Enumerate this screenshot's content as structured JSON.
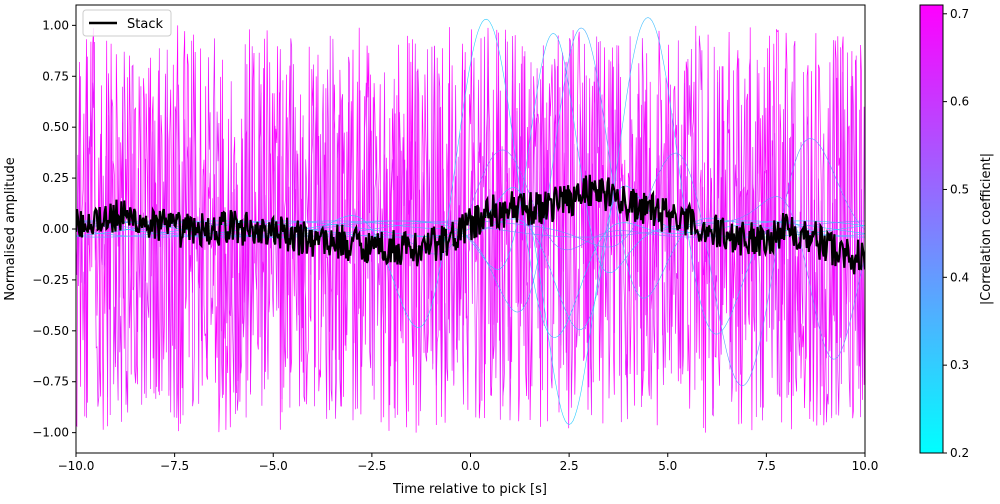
{
  "chart_data": {
    "type": "line",
    "xlabel": "Time relative to pick [s]",
    "ylabel": "Normalised amplitude",
    "xlim": [
      -10,
      10
    ],
    "ylim": [
      -1.1,
      1.1
    ],
    "xticks": [
      -10,
      -7.5,
      -5,
      -2.5,
      0,
      2.5,
      5,
      7.5,
      10
    ],
    "xtick_labels": [
      "−10.0",
      "−7.5",
      "−5.0",
      "−2.5",
      "0.0",
      "2.5",
      "5.0",
      "7.5",
      "10.0"
    ],
    "yticks": [
      -1,
      -0.75,
      -0.5,
      -0.25,
      0,
      0.25,
      0.5,
      0.75,
      1
    ],
    "ytick_labels": [
      "−1.00",
      "−0.75",
      "−0.50",
      "−0.25",
      "0.00",
      "0.25",
      "0.50",
      "0.75",
      "1.00"
    ],
    "grid": false,
    "legend": {
      "position": "top-left",
      "entries": [
        {
          "label": "Stack",
          "color": "#000000"
        }
      ]
    },
    "colorbar": {
      "label": "|Correlation coefficient|",
      "range": [
        0.2,
        0.71
      ],
      "ticks": [
        0.2,
        0.3,
        0.4,
        0.5,
        0.6,
        0.7
      ],
      "tick_labels": [
        "0.2",
        "0.3",
        "0.4",
        "0.5",
        "0.6",
        "0.7"
      ],
      "colormap": "cool",
      "color_low": "#00ffff",
      "color_high": "#ff00ff"
    },
    "series": [
      {
        "name": "Stack",
        "color": "#000000",
        "x": [
          -10,
          -9.5,
          -9,
          -8.5,
          -8,
          -7.5,
          -7,
          -6.5,
          -6,
          -5.5,
          -5,
          -4.5,
          -4,
          -3.5,
          -3,
          -2.5,
          -2,
          -1.5,
          -1,
          -0.5,
          0,
          0.5,
          1,
          1.5,
          2,
          2.5,
          3,
          3.5,
          4,
          4.5,
          5,
          5.5,
          6,
          6.5,
          7,
          7.5,
          8,
          8.5,
          9,
          9.5,
          10
        ],
        "y": [
          0.03,
          0.05,
          0.06,
          0.05,
          0.02,
          0.0,
          -0.01,
          0.0,
          0.01,
          0.0,
          -0.02,
          -0.04,
          -0.05,
          -0.06,
          -0.07,
          -0.08,
          -0.09,
          -0.1,
          -0.08,
          -0.05,
          0.02,
          0.08,
          0.1,
          0.09,
          0.12,
          0.15,
          0.2,
          0.17,
          0.12,
          0.09,
          0.07,
          0.03,
          0.0,
          -0.03,
          -0.05,
          -0.04,
          0.0,
          -0.02,
          -0.08,
          -0.12,
          -0.15
        ]
      }
    ],
    "traces": [
      {
        "correlation": 0.71,
        "amplitude": 1.0,
        "description": "high-frequency oscillation across full window"
      },
      {
        "correlation": 0.66,
        "amplitude": 0.95,
        "description": "high-frequency oscillation across full window"
      },
      {
        "correlation": 0.3,
        "peak_time": 0.4,
        "peak_value": 1.0
      },
      {
        "correlation": 0.32,
        "peak_time": 2.1,
        "peak_value": 1.0
      },
      {
        "correlation": 0.35,
        "peak_time": 2.8,
        "peak_value": 1.0
      },
      {
        "correlation": 0.33,
        "peak_time": 4.5,
        "peak_value": 1.0
      },
      {
        "correlation": 0.3,
        "peak_time": 2.5,
        "peak_value": -1.0
      },
      {
        "correlation": 0.45,
        "peak_time": 0.8,
        "peak_value": 0.35
      },
      {
        "correlation": 0.4,
        "peak_time": 6.9,
        "peak_value": -0.78
      },
      {
        "correlation": 0.42,
        "peak_time": 9.2,
        "peak_value": -0.65
      }
    ]
  }
}
